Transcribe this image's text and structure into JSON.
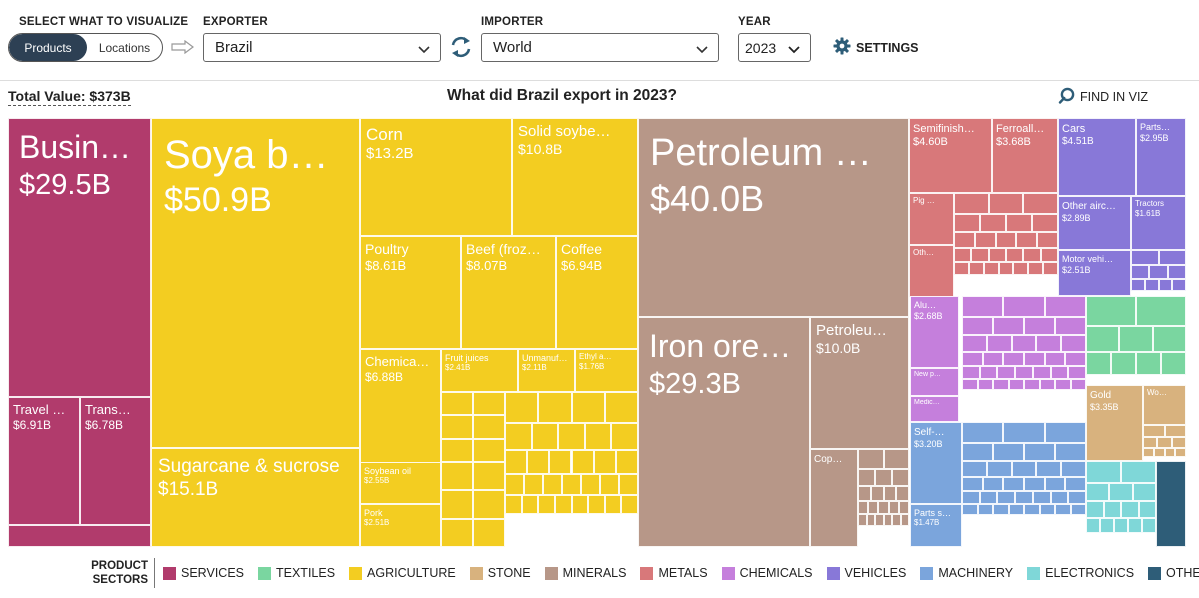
{
  "controls": {
    "visualize_label": "SELECT WHAT TO VISUALIZE",
    "mode_products": "Products",
    "mode_locations": "Locations",
    "exporter_label": "EXPORTER",
    "exporter_value": "Brazil",
    "importer_label": "IMPORTER",
    "importer_value": "World",
    "year_label": "YEAR",
    "year_value": "2023",
    "settings_label": "SETTINGS"
  },
  "header": {
    "total_value": "Total Value: $373B",
    "title": "What did Brazil export in 2023?",
    "find_label": "FIND IN VIZ"
  },
  "legend": {
    "title": "PRODUCT SECTORS",
    "items": [
      {
        "label": "SERVICES",
        "color": "#b13b6c"
      },
      {
        "label": "TEXTILES",
        "color": "#7ad6a0"
      },
      {
        "label": "AGRICULTURE",
        "color": "#f3cd21"
      },
      {
        "label": "STONE",
        "color": "#d8b27e"
      },
      {
        "label": "MINERALS",
        "color": "#b79788"
      },
      {
        "label": "METALS",
        "color": "#d8787a"
      },
      {
        "label": "CHEMICALS",
        "color": "#c57fdc"
      },
      {
        "label": "VEHICLES",
        "color": "#8878d8"
      },
      {
        "label": "MACHINERY",
        "color": "#7ba5dc"
      },
      {
        "label": "ELECTRONICS",
        "color": "#7fd7d8"
      },
      {
        "label": "OTHER",
        "color": "#2e5d78"
      }
    ]
  },
  "chart_data": {
    "type": "treemap",
    "title": "What did Brazil export in 2023?",
    "total": "$373B",
    "unit": "billion USD",
    "tiles": [
      {
        "name": "Busin…",
        "label": "$29.5B",
        "value": 29.5,
        "sector": "SERVICES"
      },
      {
        "name": "Travel …",
        "label": "$6.91B",
        "value": 6.91,
        "sector": "SERVICES"
      },
      {
        "name": "Trans…",
        "label": "$6.78B",
        "value": 6.78,
        "sector": "SERVICES"
      },
      {
        "name": "Soya be…",
        "label": "$50.9B",
        "value": 50.9,
        "sector": "AGRICULTURE"
      },
      {
        "name": "Sugarcane & sucrose",
        "label": "$15.1B",
        "value": 15.1,
        "sector": "AGRICULTURE"
      },
      {
        "name": "Corn",
        "label": "$13.2B",
        "value": 13.2,
        "sector": "AGRICULTURE"
      },
      {
        "name": "Solid soybe…",
        "label": "$10.8B",
        "value": 10.8,
        "sector": "AGRICULTURE"
      },
      {
        "name": "Poultry",
        "label": "$8.61B",
        "value": 8.61,
        "sector": "AGRICULTURE"
      },
      {
        "name": "Beef (froz…",
        "label": "$8.07B",
        "value": 8.07,
        "sector": "AGRICULTURE"
      },
      {
        "name": "Coffee",
        "label": "$6.94B",
        "value": 6.94,
        "sector": "AGRICULTURE"
      },
      {
        "name": "Chemica…",
        "label": "$6.88B",
        "value": 6.88,
        "sector": "AGRICULTURE"
      },
      {
        "name": "Fruit juices",
        "label": "$2.41B",
        "value": 2.41,
        "sector": "AGRICULTURE"
      },
      {
        "name": "Unmanuf…",
        "label": "$2.11B",
        "value": 2.11,
        "sector": "AGRICULTURE"
      },
      {
        "name": "Ethyl a…",
        "label": "$1.76B",
        "value": 1.76,
        "sector": "AGRICULTURE"
      },
      {
        "name": "Soybean oil",
        "label": "$2.55B",
        "value": 2.55,
        "sector": "AGRICULTURE"
      },
      {
        "name": "Pork",
        "label": "$2.51B",
        "value": 2.51,
        "sector": "AGRICULTURE"
      },
      {
        "name": "Petroleum …",
        "label": "$40.0B",
        "value": 40.0,
        "sector": "MINERALS"
      },
      {
        "name": "Iron ore…",
        "label": "$29.3B",
        "value": 29.3,
        "sector": "MINERALS"
      },
      {
        "name": "Petroleu…",
        "label": "$10.0B",
        "value": 10.0,
        "sector": "MINERALS"
      },
      {
        "name": "Cop…",
        "label": "",
        "value": null,
        "sector": "MINERALS"
      },
      {
        "name": "Semifinish…",
        "label": "$4.60B",
        "value": 4.6,
        "sector": "METALS"
      },
      {
        "name": "Ferroall…",
        "label": "$3.68B",
        "value": 3.68,
        "sector": "METALS"
      },
      {
        "name": "Pig …",
        "label": "",
        "value": null,
        "sector": "METALS"
      },
      {
        "name": "Oth…",
        "label": "",
        "value": null,
        "sector": "METALS"
      },
      {
        "name": "Cars",
        "label": "$4.51B",
        "value": 4.51,
        "sector": "VEHICLES"
      },
      {
        "name": "Parts…",
        "label": "$2.95B",
        "value": 2.95,
        "sector": "VEHICLES"
      },
      {
        "name": "Other airc…",
        "label": "$2.89B",
        "value": 2.89,
        "sector": "VEHICLES"
      },
      {
        "name": "Tractors",
        "label": "$1.61B",
        "value": 1.61,
        "sector": "VEHICLES"
      },
      {
        "name": "Motor vehi…",
        "label": "$2.51B",
        "value": 2.51,
        "sector": "VEHICLES"
      },
      {
        "name": "Alu…",
        "label": "$2.68B",
        "value": 2.68,
        "sector": "CHEMICALS"
      },
      {
        "name": "New p…",
        "label": "",
        "value": null,
        "sector": "CHEMICALS"
      },
      {
        "name": "Medic…",
        "label": "",
        "value": null,
        "sector": "CHEMICALS"
      },
      {
        "name": "Self-…",
        "label": "$3.20B",
        "value": 3.2,
        "sector": "MACHINERY"
      },
      {
        "name": "Parts s…",
        "label": "$1.47B",
        "value": 1.47,
        "sector": "MACHINERY"
      },
      {
        "name": "Gold",
        "label": "$3.35B",
        "value": 3.35,
        "sector": "STONE"
      },
      {
        "name": "Wo…",
        "label": "",
        "value": null,
        "sector": "STONE"
      }
    ]
  }
}
